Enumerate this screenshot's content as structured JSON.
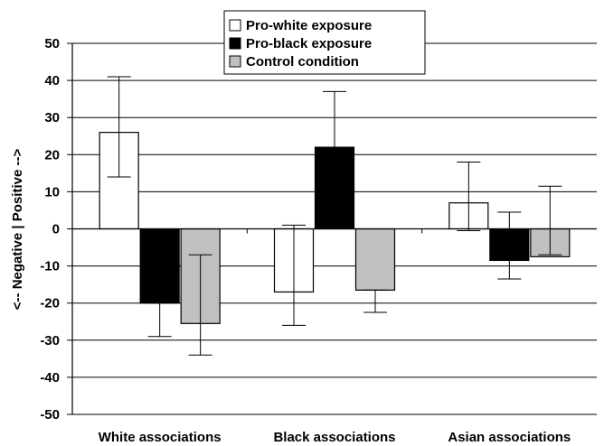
{
  "chart_data": {
    "type": "bar",
    "categories": [
      "White associations",
      "Black associations",
      "Asian associations"
    ],
    "ylabel": "<-- Negative | Positive -->",
    "ylim": [
      -50,
      50
    ],
    "yticks": [
      50,
      40,
      30,
      20,
      10,
      0,
      -10,
      -20,
      -30,
      -40,
      -50
    ],
    "grid": true,
    "legend_position": "top-center",
    "series": [
      {
        "name": "Pro-white exposure",
        "color": "#ffffff",
        "values": [
          26,
          -17,
          7
        ],
        "error_high": [
          41,
          1,
          18
        ],
        "error_low": [
          14,
          -26,
          -0.5
        ]
      },
      {
        "name": "Pro-black exposure",
        "color": "#000000",
        "values": [
          -20,
          22,
          -8.5
        ],
        "error_high": [
          -20,
          37,
          4.5
        ],
        "error_low": [
          -29,
          22,
          -13.5
        ]
      },
      {
        "name": "Control condition",
        "color": "#c0c0c0",
        "values": [
          -25.5,
          -16.5,
          -7.5
        ],
        "error_high": [
          -7,
          -16.5,
          11.5
        ],
        "error_low": [
          -34,
          -22.5,
          -7
        ]
      }
    ]
  }
}
